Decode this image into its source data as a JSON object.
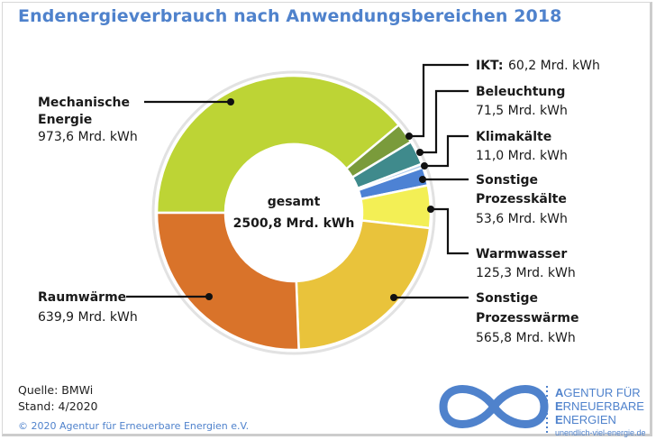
{
  "chart_data": {
    "type": "pie",
    "variant": "donut",
    "title": "Endenergieverbrauch nach Anwendungsbereichen 2018",
    "unit": "Mrd. kWh",
    "center_label": {
      "line1": "gesamt",
      "line2": "2500,8 Mrd. kWh"
    },
    "total": 2500.8,
    "slices": [
      {
        "name": "Mechanische Energie",
        "label_lines": [
          "Mechanische",
          "Energie"
        ],
        "value": 973.6,
        "value_text": "973,6 Mrd. kWh",
        "color": "#bdd435"
      },
      {
        "name": "IKT",
        "label_lines": [
          "IKT:"
        ],
        "value": 60.2,
        "value_text": "60,2 Mrd. kWh",
        "color": "#7a9b3b"
      },
      {
        "name": "Beleuchtung",
        "label_lines": [
          "Beleuchtung"
        ],
        "value": 71.5,
        "value_text": "71,5 Mrd. kWh",
        "color": "#3f8a8c"
      },
      {
        "name": "Klimakälte",
        "label_lines": [
          "Klimakälte"
        ],
        "value": 11.0,
        "value_text": "11,0 Mrd. kWh",
        "color": "#a9c9ec"
      },
      {
        "name": "Sonstige Prozesskälte",
        "label_lines": [
          "Sonstige",
          "Prozesskälte"
        ],
        "value": 53.6,
        "value_text": "53,6 Mrd. kWh",
        "color": "#4d82d4"
      },
      {
        "name": "Warmwasser",
        "label_lines": [
          "Warmwasser"
        ],
        "value": 125.3,
        "value_text": "125,3 Mrd. kWh",
        "color": "#f3ef55"
      },
      {
        "name": "Sonstige Prozesswärme",
        "label_lines": [
          "Sonstige",
          "Prozesswärme"
        ],
        "value": 565.8,
        "value_text": "565,8 Mrd. kWh",
        "color": "#e9c33b"
      },
      {
        "name": "Raumwärme",
        "label_lines": [
          "Raumwärme"
        ],
        "value": 639.9,
        "value_text": "639,9 Mrd. kWh",
        "color": "#d9732a"
      }
    ]
  },
  "source": {
    "quelle": "Quelle: BMWi",
    "stand": "Stand: 4/2020"
  },
  "copyright": "© 2020 Agentur für Erneuerbare Energien e.V.",
  "logo": {
    "line1": [
      "A",
      "GENTUR FÜR"
    ],
    "line2": [
      "E",
      "RNEUERBARE"
    ],
    "line3": [
      "E",
      "NERGIEN"
    ],
    "url": "unendlich-viel-energie.de",
    "color": "#4f82cc"
  }
}
